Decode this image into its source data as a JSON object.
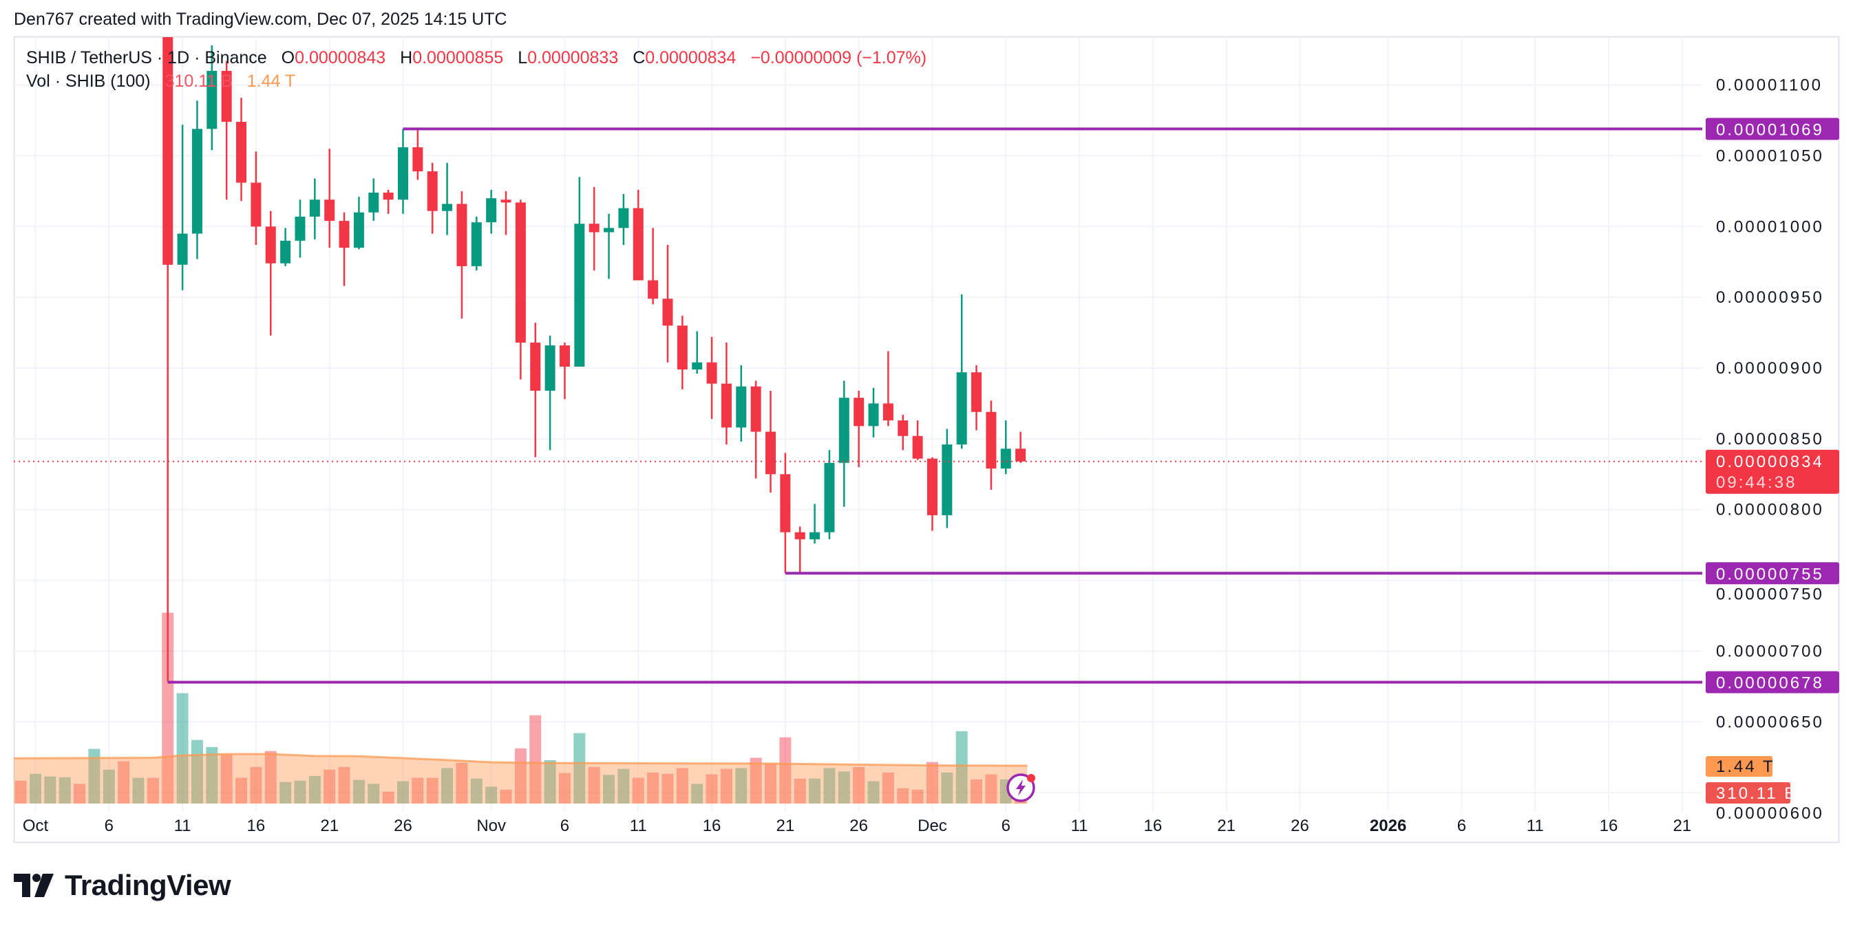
{
  "attribution": "Den767 created with TradingView.com, Dec 07, 2025 14:15 UTC",
  "legend": {
    "symbol": "SHIB / TetherUS · 1D · Binance",
    "o_label": "O",
    "o": "0.00000843",
    "h_label": "H",
    "h": "0.00000855",
    "l_label": "L",
    "l": "0.00000833",
    "c_label": "C",
    "c": "0.00000834",
    "change": "−0.00000009 (−1.07%)",
    "vol_label": "Vol · SHIB (100)",
    "vol": "310.11 B",
    "vol_ma": "1.44 T"
  },
  "brand": "TradingView",
  "icons": {
    "logo": "tradingview-logo-icon",
    "lightning": "lightning-icon"
  },
  "chart_data": {
    "type": "candlestick",
    "colors": {
      "up": "#089981",
      "down": "#f23645",
      "level_line": "#9c27b0",
      "volume_ma": "#ff9850",
      "last_price": "#f23645",
      "grid": "#f0f3fa"
    },
    "grid": true,
    "ylim": [
      6e-06,
      1.13e-05
    ],
    "y_ticks": [
      {
        "value": 1.1e-05,
        "label": "0.00001100"
      },
      {
        "value": 1.05e-05,
        "label": "0.00001050"
      },
      {
        "value": 1e-05,
        "label": "0.00001000"
      },
      {
        "value": 9.5e-06,
        "label": "0.00000950"
      },
      {
        "value": 9e-06,
        "label": "0.00000900"
      },
      {
        "value": 8.5e-06,
        "label": "0.00000850"
      },
      {
        "value": 8e-06,
        "label": "0.00000800"
      },
      {
        "value": 7.5e-06,
        "label": "0.00000750"
      },
      {
        "value": 7e-06,
        "label": "0.00000700"
      },
      {
        "value": 6.5e-06,
        "label": "0.00000650"
      },
      {
        "value": 6e-06,
        "label": "0.00000600"
      }
    ],
    "x_ticks": [
      {
        "date": "2025-10-01",
        "label": "Oct"
      },
      {
        "date": "2025-10-06",
        "label": "6"
      },
      {
        "date": "2025-10-11",
        "label": "11"
      },
      {
        "date": "2025-10-16",
        "label": "16"
      },
      {
        "date": "2025-10-21",
        "label": "21"
      },
      {
        "date": "2025-10-26",
        "label": "26"
      },
      {
        "date": "2025-11-01",
        "label": "Nov"
      },
      {
        "date": "2025-11-06",
        "label": "6"
      },
      {
        "date": "2025-11-11",
        "label": "11"
      },
      {
        "date": "2025-11-16",
        "label": "16"
      },
      {
        "date": "2025-11-21",
        "label": "21"
      },
      {
        "date": "2025-11-26",
        "label": "26"
      },
      {
        "date": "2025-12-01",
        "label": "Dec"
      },
      {
        "date": "2025-12-06",
        "label": "6"
      },
      {
        "date": "2025-12-11",
        "label": "11"
      },
      {
        "date": "2025-12-16",
        "label": "16"
      },
      {
        "date": "2025-12-21",
        "label": "21"
      },
      {
        "date": "2025-12-26",
        "label": "26"
      },
      {
        "date": "2026-01-01",
        "label": "2026",
        "bold": true
      },
      {
        "date": "2026-01-06",
        "label": "6"
      },
      {
        "date": "2026-01-11",
        "label": "11"
      },
      {
        "date": "2026-01-16",
        "label": "16"
      },
      {
        "date": "2026-01-21",
        "label": "21"
      }
    ],
    "candle_fields": [
      "date",
      "open",
      "high",
      "low",
      "close"
    ],
    "candles": [
      [
        "2025-10-10",
        1.19e-05,
        1.2e-05,
        6.78e-06,
        9.73e-06
      ],
      [
        "2025-10-11",
        9.73e-06,
        1.072e-05,
        9.55e-06,
        9.95e-06
      ],
      [
        "2025-10-12",
        9.95e-06,
        1.089e-05,
        9.77e-06,
        1.069e-05
      ],
      [
        "2025-10-13",
        1.069e-05,
        1.128e-05,
        1.054e-05,
        1.11e-05
      ],
      [
        "2025-10-14",
        1.11e-05,
        1.117e-05,
        1.019e-05,
        1.074e-05
      ],
      [
        "2025-10-15",
        1.074e-05,
        1.091e-05,
        1.018e-05,
        1.031e-05
      ],
      [
        "2025-10-16",
        1.031e-05,
        1.053e-05,
        9.87e-06,
        1e-05
      ],
      [
        "2025-10-17",
        1e-05,
        1.011e-05,
        9.23e-06,
        9.74e-06
      ],
      [
        "2025-10-18",
        9.74e-06,
        9.99e-06,
        9.72e-06,
        9.9e-06
      ],
      [
        "2025-10-19",
        9.9e-06,
        1.019e-05,
        9.78e-06,
        1.007e-05
      ],
      [
        "2025-10-20",
        1.007e-05,
        1.034e-05,
        9.91e-06,
        1.019e-05
      ],
      [
        "2025-10-21",
        1.019e-05,
        1.055e-05,
        9.85e-06,
        1.004e-05
      ],
      [
        "2025-10-22",
        1.004e-05,
        1.01e-05,
        9.58e-06,
        9.85e-06
      ],
      [
        "2025-10-23",
        9.85e-06,
        1.021e-05,
        9.84e-06,
        1.01e-05
      ],
      [
        "2025-10-24",
        1.01e-05,
        1.034e-05,
        1.004e-05,
        1.024e-05
      ],
      [
        "2025-10-25",
        1.024e-05,
        1.026e-05,
        1.009e-05,
        1.019e-05
      ],
      [
        "2025-10-26",
        1.019e-05,
        1.069e-05,
        1.009e-05,
        1.056e-05
      ],
      [
        "2025-10-27",
        1.056e-05,
        1.069e-05,
        1.033e-05,
        1.039e-05
      ],
      [
        "2025-10-28",
        1.039e-05,
        1.045e-05,
        9.95e-06,
        1.011e-05
      ],
      [
        "2025-10-29",
        1.011e-05,
        1.045e-05,
        9.94e-06,
        1.016e-05
      ],
      [
        "2025-10-30",
        1.016e-05,
        1.025e-05,
        9.35e-06,
        9.72e-06
      ],
      [
        "2025-10-31",
        9.72e-06,
        1.007e-05,
        9.69e-06,
        1.003e-05
      ],
      [
        "2025-11-01",
        1.003e-05,
        1.026e-05,
        9.95e-06,
        1.02e-05
      ],
      [
        "2025-11-02",
        1.019e-05,
        1.025e-05,
        9.94e-06,
        1.017e-05
      ],
      [
        "2025-11-03",
        1.017e-05,
        1.019e-05,
        8.92e-06,
        9.18e-06
      ],
      [
        "2025-11-04",
        9.18e-06,
        9.32e-06,
        8.37e-06,
        8.84e-06
      ],
      [
        "2025-11-05",
        8.84e-06,
        9.23e-06,
        8.42e-06,
        9.16e-06
      ],
      [
        "2025-11-06",
        9.16e-06,
        9.18e-06,
        8.78e-06,
        9.01e-06
      ],
      [
        "2025-11-07",
        9.01e-06,
        1.035e-05,
        9.01e-06,
        1.002e-05
      ],
      [
        "2025-11-08",
        1.002e-05,
        1.028e-05,
        9.69e-06,
        9.96e-06
      ],
      [
        "2025-11-09",
        9.96e-06,
        1.009e-05,
        9.63e-06,
        9.99e-06
      ],
      [
        "2025-11-10",
        9.99e-06,
        1.023e-05,
        9.87e-06,
        1.013e-05
      ],
      [
        "2025-11-11",
        1.013e-05,
        1.026e-05,
        9.62e-06,
        9.62e-06
      ],
      [
        "2025-11-12",
        9.62e-06,
        9.99e-06,
        9.45e-06,
        9.49e-06
      ],
      [
        "2025-11-13",
        9.49e-06,
        9.87e-06,
        9.04e-06,
        9.3e-06
      ],
      [
        "2025-11-14",
        9.3e-06,
        9.37e-06,
        8.85e-06,
        8.99e-06
      ],
      [
        "2025-11-15",
        8.99e-06,
        9.26e-06,
        8.96e-06,
        9.04e-06
      ],
      [
        "2025-11-16",
        9.04e-06,
        9.22e-06,
        8.64e-06,
        8.89e-06
      ],
      [
        "2025-11-17",
        8.89e-06,
        9.18e-06,
        8.46e-06,
        8.58e-06
      ],
      [
        "2025-11-18",
        8.58e-06,
        9.02e-06,
        8.48e-06,
        8.87e-06
      ],
      [
        "2025-11-19",
        8.87e-06,
        8.91e-06,
        8.22e-06,
        8.55e-06
      ],
      [
        "2025-11-20",
        8.55e-06,
        8.84e-06,
        8.12e-06,
        8.25e-06
      ],
      [
        "2025-11-21",
        8.25e-06,
        8.4e-06,
        7.55e-06,
        7.84e-06
      ],
      [
        "2025-11-22",
        7.84e-06,
        7.88e-06,
        7.55e-06,
        7.79e-06
      ],
      [
        "2025-11-23",
        7.79e-06,
        8.04e-06,
        7.76e-06,
        7.84e-06
      ],
      [
        "2025-11-24",
        7.84e-06,
        8.42e-06,
        7.79e-06,
        8.33e-06
      ],
      [
        "2025-11-25",
        8.33e-06,
        8.91e-06,
        8.02e-06,
        8.79e-06
      ],
      [
        "2025-11-26",
        8.79e-06,
        8.84e-06,
        8.3e-06,
        8.59e-06
      ],
      [
        "2025-11-27",
        8.59e-06,
        8.86e-06,
        8.51e-06,
        8.75e-06
      ],
      [
        "2025-11-28",
        8.75e-06,
        9.12e-06,
        8.59e-06,
        8.63e-06
      ],
      [
        "2025-11-29",
        8.63e-06,
        8.67e-06,
        8.42e-06,
        8.52e-06
      ],
      [
        "2025-11-30",
        8.52e-06,
        8.63e-06,
        8.35e-06,
        8.36e-06
      ],
      [
        "2025-12-01",
        8.36e-06,
        8.37e-06,
        7.85e-06,
        7.96e-06
      ],
      [
        "2025-12-02",
        7.96e-06,
        8.57e-06,
        7.87e-06,
        8.46e-06
      ],
      [
        "2025-12-03",
        8.46e-06,
        9.52e-06,
        8.43e-06,
        8.97e-06
      ],
      [
        "2025-12-04",
        8.97e-06,
        9.02e-06,
        8.56e-06,
        8.69e-06
      ],
      [
        "2025-12-05",
        8.69e-06,
        8.77e-06,
        8.14e-06,
        8.29e-06
      ],
      [
        "2025-12-06",
        8.29e-06,
        8.63e-06,
        8.25e-06,
        8.43e-06
      ],
      [
        "2025-12-07",
        8.43e-06,
        8.55e-06,
        8.33e-06,
        8.34e-06
      ]
    ],
    "volume_fields": [
      "date",
      "volume_billions",
      "direction"
    ],
    "volume": [
      [
        "2025-09-30",
        870,
        "down"
      ],
      [
        "2025-10-01",
        1130,
        "up"
      ],
      [
        "2025-10-02",
        1030,
        "up"
      ],
      [
        "2025-10-03",
        1000,
        "up"
      ],
      [
        "2025-10-04",
        750,
        "down"
      ],
      [
        "2025-10-05",
        2080,
        "up"
      ],
      [
        "2025-10-06",
        1290,
        "up"
      ],
      [
        "2025-10-07",
        1610,
        "down"
      ],
      [
        "2025-10-08",
        980,
        "up"
      ],
      [
        "2025-10-09",
        980,
        "down"
      ],
      [
        "2025-10-10",
        7260,
        "down"
      ],
      [
        "2025-10-11",
        4200,
        "up"
      ],
      [
        "2025-10-12",
        2420,
        "up"
      ],
      [
        "2025-10-13",
        2150,
        "up"
      ],
      [
        "2025-10-14",
        1870,
        "down"
      ],
      [
        "2025-10-15",
        980,
        "down"
      ],
      [
        "2025-10-16",
        1390,
        "down"
      ],
      [
        "2025-10-17",
        2000,
        "down"
      ],
      [
        "2025-10-18",
        820,
        "up"
      ],
      [
        "2025-10-19",
        870,
        "up"
      ],
      [
        "2025-10-20",
        1050,
        "up"
      ],
      [
        "2025-10-21",
        1290,
        "down"
      ],
      [
        "2025-10-22",
        1390,
        "down"
      ],
      [
        "2025-10-23",
        900,
        "up"
      ],
      [
        "2025-10-24",
        750,
        "up"
      ],
      [
        "2025-10-25",
        450,
        "down"
      ],
      [
        "2025-10-26",
        850,
        "up"
      ],
      [
        "2025-10-27",
        980,
        "down"
      ],
      [
        "2025-10-28",
        980,
        "down"
      ],
      [
        "2025-10-29",
        1350,
        "up"
      ],
      [
        "2025-10-30",
        1550,
        "down"
      ],
      [
        "2025-10-31",
        950,
        "up"
      ],
      [
        "2025-11-01",
        640,
        "up"
      ],
      [
        "2025-11-02",
        530,
        "down"
      ],
      [
        "2025-11-03",
        2100,
        "down"
      ],
      [
        "2025-11-04",
        3360,
        "down"
      ],
      [
        "2025-11-05",
        1650,
        "up"
      ],
      [
        "2025-11-06",
        1160,
        "down"
      ],
      [
        "2025-11-07",
        2680,
        "up"
      ],
      [
        "2025-11-08",
        1390,
        "down"
      ],
      [
        "2025-11-09",
        1090,
        "up"
      ],
      [
        "2025-11-10",
        1320,
        "up"
      ],
      [
        "2025-11-11",
        980,
        "down"
      ],
      [
        "2025-11-12",
        1180,
        "down"
      ],
      [
        "2025-11-13",
        1130,
        "down"
      ],
      [
        "2025-11-14",
        1350,
        "down"
      ],
      [
        "2025-11-15",
        750,
        "up"
      ],
      [
        "2025-11-16",
        1110,
        "down"
      ],
      [
        "2025-11-17",
        1320,
        "down"
      ],
      [
        "2025-11-18",
        1350,
        "up"
      ],
      [
        "2025-11-19",
        1740,
        "down"
      ],
      [
        "2025-11-20",
        1520,
        "down"
      ],
      [
        "2025-11-21",
        2520,
        "down"
      ],
      [
        "2025-11-22",
        950,
        "down"
      ],
      [
        "2025-11-23",
        950,
        "up"
      ],
      [
        "2025-11-24",
        1350,
        "up"
      ],
      [
        "2025-11-25",
        1220,
        "up"
      ],
      [
        "2025-11-26",
        1390,
        "down"
      ],
      [
        "2025-11-27",
        850,
        "up"
      ],
      [
        "2025-11-28",
        1180,
        "down"
      ],
      [
        "2025-11-29",
        580,
        "down"
      ],
      [
        "2025-11-30",
        530,
        "down"
      ],
      [
        "2025-12-01",
        1580,
        "down"
      ],
      [
        "2025-12-02",
        1180,
        "up"
      ],
      [
        "2025-12-03",
        2750,
        "up"
      ],
      [
        "2025-12-04",
        920,
        "down"
      ],
      [
        "2025-12-05",
        1110,
        "down"
      ],
      [
        "2025-12-06",
        920,
        "up"
      ],
      [
        "2025-12-07",
        310.11,
        "down"
      ]
    ],
    "volume_ma": [
      [
        "2025-09-30",
        1720
      ],
      [
        "2025-10-09",
        1740
      ],
      [
        "2025-10-11",
        1830
      ],
      [
        "2025-10-14",
        1880
      ],
      [
        "2025-10-17",
        1880
      ],
      [
        "2025-10-20",
        1810
      ],
      [
        "2025-10-23",
        1800
      ],
      [
        "2025-10-28",
        1680
      ],
      [
        "2025-11-01",
        1570
      ],
      [
        "2025-11-05",
        1540
      ],
      [
        "2025-11-20",
        1520
      ],
      [
        "2025-11-25",
        1490
      ],
      [
        "2025-12-01",
        1450
      ],
      [
        "2025-12-07",
        1440
      ]
    ],
    "horizontal_lines": [
      {
        "price": 1.069e-05,
        "start": "2025-10-26",
        "label": "0.00001069"
      },
      {
        "price": 7.55e-06,
        "start": "2025-11-21",
        "label": "0.00000755"
      },
      {
        "price": 6.78e-06,
        "start": "2025-10-10",
        "label": "0.00000678"
      }
    ],
    "last_price": {
      "price": 8.34e-06,
      "label": "0.00000834",
      "countdown": "09:44:38"
    },
    "volume_labels": {
      "ma": "1.44 T",
      "last": "310.11 B"
    }
  }
}
